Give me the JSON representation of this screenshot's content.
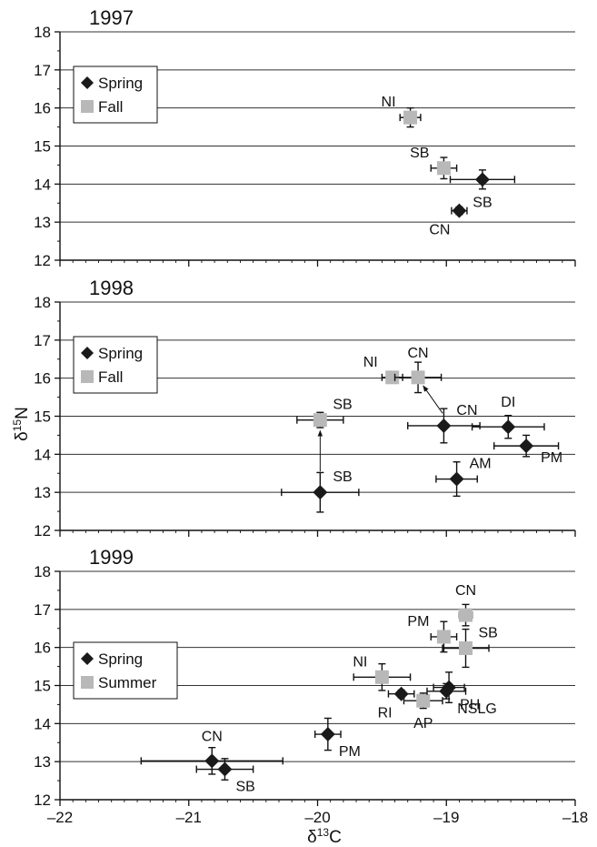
{
  "chart_data": [
    {
      "type": "scatter",
      "title": "1997",
      "xlim": [
        -22,
        -18
      ],
      "ylim": [
        12,
        18
      ],
      "legend": {
        "position": "top-left",
        "entries": [
          {
            "name": "Spring",
            "marker": "diamond",
            "color": "#1a1a1a"
          },
          {
            "name": "Fall",
            "marker": "square",
            "color": "#b8b8b8"
          }
        ]
      },
      "points": [
        {
          "series": "Fall",
          "label": "NI",
          "x": -19.28,
          "y": 15.75,
          "xerr": 0.08,
          "yerr": 0.25,
          "label_pos": "nw"
        },
        {
          "series": "Fall",
          "label": "SB",
          "x": -19.02,
          "y": 14.42,
          "xerr": 0.1,
          "yerr": 0.28,
          "label_pos": "nw"
        },
        {
          "series": "Spring",
          "label": "SB",
          "x": -18.72,
          "y": 14.12,
          "xerr": 0.25,
          "yerr": 0.25,
          "label_pos": "s"
        },
        {
          "series": "Spring",
          "label": "CN",
          "x": -18.9,
          "y": 13.3,
          "xerr": 0.06,
          "yerr": 0.1,
          "label_pos": "sw"
        }
      ],
      "arrows": []
    },
    {
      "type": "scatter",
      "title": "1998",
      "xlim": [
        -22,
        -18
      ],
      "ylim": [
        12,
        18
      ],
      "legend": {
        "position": "top-left",
        "entries": [
          {
            "name": "Spring",
            "marker": "diamond",
            "color": "#1a1a1a"
          },
          {
            "name": "Fall",
            "marker": "square",
            "color": "#b8b8b8"
          }
        ]
      },
      "points": [
        {
          "series": "Fall",
          "label": "NI",
          "x": -19.42,
          "y": 16.02,
          "xerr": 0.08,
          "yerr": 0.05,
          "label_pos": "nw"
        },
        {
          "series": "Fall",
          "label": "CN",
          "x": -19.22,
          "y": 16.02,
          "xerr": 0.18,
          "yerr": 0.4,
          "label_pos": "n"
        },
        {
          "series": "Fall",
          "label": "SB",
          "x": -19.98,
          "y": 14.9,
          "xerr": 0.18,
          "yerr": 0.2,
          "label_pos": "ne"
        },
        {
          "series": "Spring",
          "label": "CN",
          "x": -19.02,
          "y": 14.75,
          "xerr": 0.28,
          "yerr": 0.45,
          "label_pos": "ne"
        },
        {
          "series": "Spring",
          "label": "DI",
          "x": -18.52,
          "y": 14.72,
          "xerr": 0.28,
          "yerr": 0.3,
          "label_pos": "n"
        },
        {
          "series": "Spring",
          "label": "PM",
          "x": -18.38,
          "y": 14.22,
          "xerr": 0.25,
          "yerr": 0.28,
          "label_pos": "e"
        },
        {
          "series": "Spring",
          "label": "AM",
          "x": -18.92,
          "y": 13.35,
          "xerr": 0.16,
          "yerr": 0.45,
          "label_pos": "ne"
        },
        {
          "series": "Spring",
          "label": "SB",
          "x": -19.98,
          "y": 13.0,
          "xerr": 0.3,
          "yerr": 0.52,
          "label_pos": "ne"
        }
      ],
      "arrows": [
        {
          "from": [
            -19.98,
            13.55
          ],
          "to": [
            -19.98,
            14.62
          ]
        },
        {
          "from": [
            -19.03,
            15.08
          ],
          "to": [
            -19.18,
            15.8
          ]
        }
      ]
    },
    {
      "type": "scatter",
      "title": "1999",
      "xlim": [
        -22,
        -18
      ],
      "ylim": [
        12,
        18
      ],
      "xlabel": "δ13C",
      "xticks": [
        -22,
        -21,
        -20,
        -19,
        -18
      ],
      "xtick_labels": [
        "–22",
        "–21",
        "–20",
        "–19",
        "–18"
      ],
      "legend": {
        "position": "middle-left",
        "entries": [
          {
            "name": "Spring",
            "marker": "diamond",
            "color": "#1a1a1a"
          },
          {
            "name": "Summer",
            "marker": "square",
            "color": "#b8b8b8"
          }
        ]
      },
      "points": [
        {
          "series": "Summer",
          "label": "CN",
          "x": -18.85,
          "y": 16.85,
          "xerr": 0.05,
          "yerr": 0.28,
          "label_pos": "n"
        },
        {
          "series": "Summer",
          "label": "PM",
          "x": -19.02,
          "y": 16.28,
          "xerr": 0.1,
          "yerr": 0.4,
          "label_pos": "nw"
        },
        {
          "series": "Summer",
          "label": "SB",
          "x": -18.85,
          "y": 15.98,
          "xerr": 0.18,
          "yerr": 0.5,
          "label_pos": "ne"
        },
        {
          "series": "Summer",
          "label": "NI",
          "x": -19.5,
          "y": 15.22,
          "xerr": 0.22,
          "yerr": 0.35,
          "label_pos": "nw"
        },
        {
          "series": "Summer",
          "label": "AP",
          "x": -19.18,
          "y": 14.6,
          "xerr": 0.15,
          "yerr": 0.2,
          "label_pos": "s"
        },
        {
          "series": "Spring",
          "label": "PH",
          "x": -18.98,
          "y": 14.95,
          "xerr": 0.12,
          "yerr": 0.4,
          "label_pos": "se"
        },
        {
          "series": "Spring",
          "label": "NSLG",
          "x": -19.0,
          "y": 14.85,
          "xerr": 0.15,
          "yerr": 0.2,
          "label_pos": "se"
        },
        {
          "series": "Spring",
          "label": "RI",
          "x": -19.35,
          "y": 14.78,
          "xerr": 0.1,
          "yerr": 0.1,
          "label_pos": "sw"
        },
        {
          "series": "Spring",
          "label": "PM",
          "x": -19.92,
          "y": 13.72,
          "xerr": 0.1,
          "yerr": 0.42,
          "label_pos": "se"
        },
        {
          "series": "Spring",
          "label": "CN",
          "x": -20.82,
          "y": 13.02,
          "xerr": 0.55,
          "yerr": 0.35,
          "label_pos": "n"
        },
        {
          "series": "Spring",
          "label": "SB",
          "x": -20.72,
          "y": 12.8,
          "xerr": 0.22,
          "yerr": 0.28,
          "label_pos": "se"
        }
      ],
      "arrows": []
    }
  ],
  "shared": {
    "ylabel": "δ15N",
    "yticks": [
      12,
      13,
      14,
      15,
      16,
      17,
      18
    ],
    "grid": "horizontal",
    "spring_color": "#1a1a1a",
    "fall_color": "#b8b8b8"
  }
}
